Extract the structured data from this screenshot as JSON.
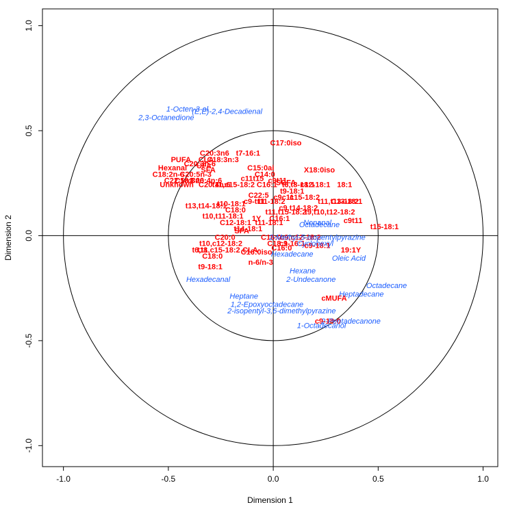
{
  "chart_data": {
    "type": "scatter",
    "title": "",
    "xlabel": "Dimension  1",
    "ylabel": "Dimension  2",
    "xlim": [
      -1.1,
      1.07
    ],
    "ylim": [
      -1.1,
      1.08
    ],
    "x_ticks": [
      "-1.0",
      "-0.5",
      "0.0",
      "0.5",
      "1.0"
    ],
    "y_ticks": [
      "-1.0",
      "-0.5",
      "0.0",
      "0.5",
      "1.0"
    ],
    "x_tick_values": [
      -1.0,
      -0.5,
      0.0,
      0.5,
      1.0
    ],
    "y_tick_values": [
      -1.0,
      -0.5,
      0.0,
      0.5,
      1.0
    ],
    "circles": [
      1.0,
      0.5
    ],
    "reference_lines": {
      "x": 0,
      "y": 0
    },
    "colors": {
      "fatty_acids": "#ff0000",
      "volatiles": "#1a5cff"
    },
    "series": [
      {
        "group": "fatty_acids",
        "points": [
          {
            "label": "C17:0iso",
            "x": 0.06,
            "y": 0.44
          },
          {
            "label": "C20:3n6",
            "x": -0.28,
            "y": 0.39
          },
          {
            "label": "t7-16:1",
            "x": -0.12,
            "y": 0.39
          },
          {
            "label": "CLA",
            "x": -0.32,
            "y": 0.36
          },
          {
            "label": "PUFA",
            "x": -0.44,
            "y": 0.36
          },
          {
            "label": "C18:3n:3",
            "x": -0.24,
            "y": 0.36
          },
          {
            "label": "C20:3n-6",
            "x": -0.35,
            "y": 0.34
          },
          {
            "label": "UFA",
            "x": -0.33,
            "y": 0.33
          },
          {
            "label": "Hexanal",
            "x": -0.48,
            "y": 0.32
          },
          {
            "label": "SFA",
            "x": -0.31,
            "y": 0.31
          },
          {
            "label": "C15:0ai",
            "x": -0.06,
            "y": 0.32
          },
          {
            "label": "C14:0",
            "x": -0.04,
            "y": 0.29
          },
          {
            "label": "X18:0iso",
            "x": 0.22,
            "y": 0.31
          },
          {
            "label": "C18:2n-6",
            "x": -0.5,
            "y": 0.29
          },
          {
            "label": "C20:5n-3",
            "x": -0.37,
            "y": 0.29
          },
          {
            "label": "C22:5n3",
            "x": -0.45,
            "y": 0.26
          },
          {
            "label": "C18:3n6",
            "x": -0.4,
            "y": 0.26
          },
          {
            "label": "C20:4n:6",
            "x": -0.32,
            "y": 0.26
          },
          {
            "label": "Unknown",
            "x": -0.46,
            "y": 0.24
          },
          {
            "label": "C20:4n:6",
            "x": -0.28,
            "y": 0.24
          },
          {
            "label": "c11t15",
            "x": -0.1,
            "y": 0.27
          },
          {
            "label": "c9t11",
            "x": 0.02,
            "y": 0.26
          },
          {
            "label": "t11,c15-18:2",
            "x": -0.19,
            "y": 0.24
          },
          {
            "label": "C16:1",
            "x": -0.03,
            "y": 0.24
          },
          {
            "label": "SCFA",
            "x": 0.06,
            "y": 0.25
          },
          {
            "label": "t6,t8-18:1",
            "x": 0.12,
            "y": 0.24
          },
          {
            "label": "c12-18:1",
            "x": 0.2,
            "y": 0.24
          },
          {
            "label": "18:1",
            "x": 0.34,
            "y": 0.24
          },
          {
            "label": "t9-18:1",
            "x": 0.09,
            "y": 0.21
          },
          {
            "label": "c9c11",
            "x": 0.05,
            "y": 0.18
          },
          {
            "label": "C22:5",
            "x": -0.07,
            "y": 0.19
          },
          {
            "label": "c15-18:2",
            "x": 0.15,
            "y": 0.18
          },
          {
            "label": "C13-18:1",
            "x": 0.35,
            "y": 0.16
          },
          {
            "label": "t10-18:1",
            "x": -0.2,
            "y": 0.15
          },
          {
            "label": "c9-t11",
            "x": -0.09,
            "y": 0.16
          },
          {
            "label": "t11-18:2",
            "x": -0.01,
            "y": 0.16
          },
          {
            "label": "t13,t14-18:1",
            "x": -0.32,
            "y": 0.14
          },
          {
            "label": "C18:0",
            "x": -0.18,
            "y": 0.12
          },
          {
            "label": "c9,t14-18:2",
            "x": 0.12,
            "y": 0.13
          },
          {
            "label": "t10,t11-18:1",
            "x": -0.24,
            "y": 0.09
          },
          {
            "label": "t11,t15-18:2",
            "x": 0.06,
            "y": 0.11
          },
          {
            "label": "t9,t10,t12-18:2",
            "x": 0.27,
            "y": 0.11
          },
          {
            "label": "C16:1",
            "x": 0.03,
            "y": 0.08
          },
          {
            "label": "C12-18:1",
            "x": -0.18,
            "y": 0.06
          },
          {
            "label": "1Y",
            "x": -0.08,
            "y": 0.08
          },
          {
            "label": "t11-18:1",
            "x": -0.02,
            "y": 0.06
          },
          {
            "label": "t11,t13-18:2",
            "x": 0.31,
            "y": 0.16
          },
          {
            "label": "t15-18:1",
            "x": 0.53,
            "y": 0.04
          },
          {
            "label": "c9t11",
            "x": 0.38,
            "y": 0.07
          },
          {
            "label": "SFA",
            "x": -0.15,
            "y": 0.02
          },
          {
            "label": "t14-18:1",
            "x": -0.12,
            "y": 0.03
          },
          {
            "label": "C20:0",
            "x": -0.23,
            "y": -0.01
          },
          {
            "label": "C16:0",
            "x": -0.01,
            "y": -0.01
          },
          {
            "label": "c9,c12-18:2",
            "x": 0.13,
            "y": -0.01
          },
          {
            "label": "t10,c12-18:2",
            "x": -0.25,
            "y": -0.04
          },
          {
            "label": "C18:1",
            "x": 0.02,
            "y": -0.04
          },
          {
            "label": "c9-16:1",
            "x": 0.09,
            "y": -0.04
          },
          {
            "label": "C16:0",
            "x": 0.04,
            "y": -0.06
          },
          {
            "label": "t6,t8",
            "x": -0.35,
            "y": -0.07
          },
          {
            "label": "t11,c15-18:2",
            "x": -0.26,
            "y": -0.07
          },
          {
            "label": "CLA",
            "x": -0.11,
            "y": -0.07
          },
          {
            "label": "C16:0iso",
            "x": -0.08,
            "y": -0.08
          },
          {
            "label": "c9-18:1",
            "x": 0.21,
            "y": -0.05
          },
          {
            "label": "19:1Y",
            "x": 0.37,
            "y": -0.07
          },
          {
            "label": "C18:0",
            "x": -0.29,
            "y": -0.1
          },
          {
            "label": "n-6/n-3",
            "x": -0.06,
            "y": -0.13
          },
          {
            "label": "t9-18:1",
            "x": -0.3,
            "y": -0.15
          },
          {
            "label": "cMUFA",
            "x": 0.29,
            "y": -0.3
          },
          {
            "label": "c9-18:0",
            "x": 0.26,
            "y": -0.41
          }
        ]
      },
      {
        "group": "volatiles",
        "points": [
          {
            "label": "1-Octen-3-ol",
            "x": -0.41,
            "y": 0.6
          },
          {
            "label": "(E,E)-2,4-Decadienal",
            "x": -0.22,
            "y": 0.59
          },
          {
            "label": "2,3-Octanedione",
            "x": -0.51,
            "y": 0.56
          },
          {
            "label": "Nonanal",
            "x": 0.21,
            "y": 0.06
          },
          {
            "label": "Octadecane",
            "x": 0.22,
            "y": 0.05
          },
          {
            "label": "2-Methyl-5-isopentylpyrazine",
            "x": 0.21,
            "y": -0.01
          },
          {
            "label": "Cyclohexyl",
            "x": 0.2,
            "y": -0.04
          },
          {
            "label": "Hexadecane",
            "x": 0.09,
            "y": -0.09
          },
          {
            "label": "Oleic Acid",
            "x": 0.36,
            "y": -0.11
          },
          {
            "label": "Hexadecanal",
            "x": -0.31,
            "y": -0.21
          },
          {
            "label": "Hexane",
            "x": 0.14,
            "y": -0.17
          },
          {
            "label": "Heptadecane",
            "x": 0.42,
            "y": -0.28
          },
          {
            "label": "2-Undecanone",
            "x": 0.18,
            "y": -0.21
          },
          {
            "label": "Octadecane",
            "x": 0.54,
            "y": -0.24
          },
          {
            "label": "Heptane",
            "x": -0.14,
            "y": -0.29
          },
          {
            "label": "1,2-Epoxyoctadecane",
            "x": -0.03,
            "y": -0.33
          },
          {
            "label": "2-isopentyl-3,6-dimethylpyrazine",
            "x": 0.04,
            "y": -0.36
          },
          {
            "label": "2-Pentadecanone",
            "x": 0.37,
            "y": -0.41
          },
          {
            "label": "1-Octadecanol",
            "x": 0.23,
            "y": -0.43
          }
        ]
      }
    ]
  }
}
